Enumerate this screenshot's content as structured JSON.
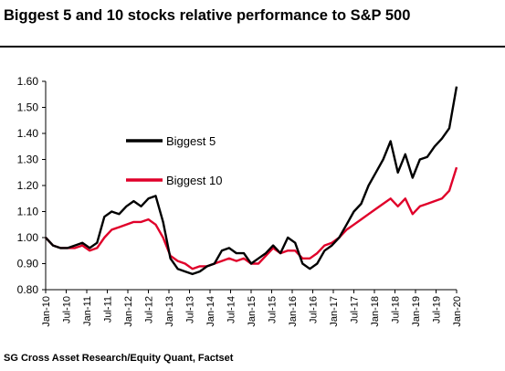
{
  "title": "Biggest 5 and 10 stocks relative performance to S&P 500",
  "source": "SG Cross Asset Research/Equity Quant, Factset",
  "chart_data": {
    "type": "line",
    "ylim": [
      0.8,
      1.6
    ],
    "yticks": [
      "0.80",
      "0.90",
      "1.00",
      "1.10",
      "1.20",
      "1.30",
      "1.40",
      "1.50",
      "1.60"
    ],
    "xticks": [
      "Jan-10",
      "Jul-10",
      "Jan-11",
      "Jul-11",
      "Jan-12",
      "Jul-12",
      "Jan-13",
      "Jul-13",
      "Jan-14",
      "Jul-14",
      "Jan-15",
      "Jul-15",
      "Jan-16",
      "Jul-16",
      "Jan-17",
      "Jul-17",
      "Jan-18",
      "Jul-18",
      "Jan-19",
      "Jul-19",
      "Jan-20"
    ],
    "grid": false,
    "legend": "upper-left inside plot",
    "series": [
      {
        "name": "Biggest 5",
        "color": "#000000",
        "values": [
          1.0,
          0.97,
          0.96,
          0.96,
          0.97,
          0.98,
          0.96,
          0.98,
          1.08,
          1.1,
          1.09,
          1.12,
          1.14,
          1.12,
          1.15,
          1.16,
          1.06,
          0.92,
          0.88,
          0.87,
          0.86,
          0.87,
          0.89,
          0.9,
          0.95,
          0.96,
          0.94,
          0.94,
          0.9,
          0.92,
          0.94,
          0.97,
          0.94,
          1.0,
          0.98,
          0.9,
          0.88,
          0.9,
          0.95,
          0.97,
          1.0,
          1.05,
          1.1,
          1.13,
          1.2,
          1.25,
          1.3,
          1.37,
          1.25,
          1.32,
          1.23,
          1.3,
          1.31,
          1.35,
          1.38,
          1.42,
          1.58
        ]
      },
      {
        "name": "Biggest 10",
        "color": "#e0002a",
        "values": [
          1.0,
          0.97,
          0.96,
          0.96,
          0.96,
          0.97,
          0.95,
          0.96,
          1.0,
          1.03,
          1.04,
          1.05,
          1.06,
          1.06,
          1.07,
          1.05,
          1.0,
          0.93,
          0.91,
          0.9,
          0.88,
          0.89,
          0.89,
          0.9,
          0.91,
          0.92,
          0.91,
          0.92,
          0.9,
          0.9,
          0.93,
          0.96,
          0.94,
          0.95,
          0.95,
          0.92,
          0.92,
          0.94,
          0.97,
          0.98,
          1.0,
          1.03,
          1.05,
          1.07,
          1.09,
          1.11,
          1.13,
          1.15,
          1.12,
          1.15,
          1.09,
          1.12,
          1.13,
          1.14,
          1.15,
          1.18,
          1.27
        ]
      }
    ]
  }
}
